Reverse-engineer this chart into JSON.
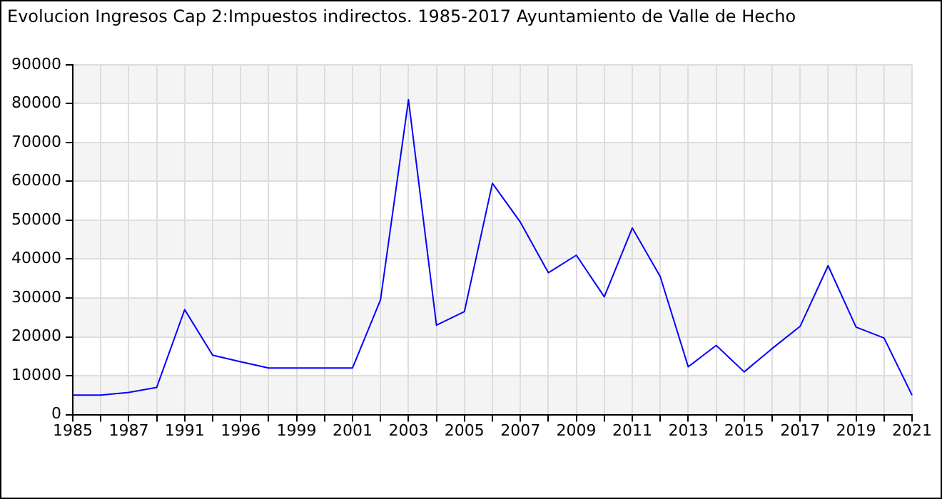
{
  "chart_data": {
    "type": "line",
    "title": "Evolucion Ingresos Cap 2:Impuestos indirectos. 1985-2017 Ayuntamiento de Valle de Hecho",
    "categories": [
      "1985",
      null,
      "1987",
      null,
      "1991",
      null,
      "1996",
      null,
      "1999",
      null,
      "2001",
      null,
      "2003",
      null,
      "2005",
      null,
      "2007",
      null,
      "2009",
      null,
      "2011",
      null,
      "2013",
      null,
      "2015",
      null,
      "2017",
      null,
      "2019",
      null,
      "2021"
    ],
    "series": [
      {
        "color": "#0000ff",
        "values": [
          5000,
          5000,
          5700,
          7000,
          27000,
          15300,
          13600,
          12000,
          12000,
          12000,
          12000,
          29500,
          81000,
          23000,
          26500,
          59500,
          49500,
          36500,
          41000,
          30300,
          48000,
          35500,
          12300,
          17800,
          11000,
          17000,
          22700,
          38300,
          22500,
          19700,
          5000
        ]
      }
    ],
    "ylim": [
      0,
      90000
    ],
    "yticks": [
      0,
      10000,
      20000,
      30000,
      40000,
      50000,
      60000,
      70000,
      80000,
      90000
    ],
    "grid": true,
    "marker": "none",
    "line_style": "solid"
  }
}
